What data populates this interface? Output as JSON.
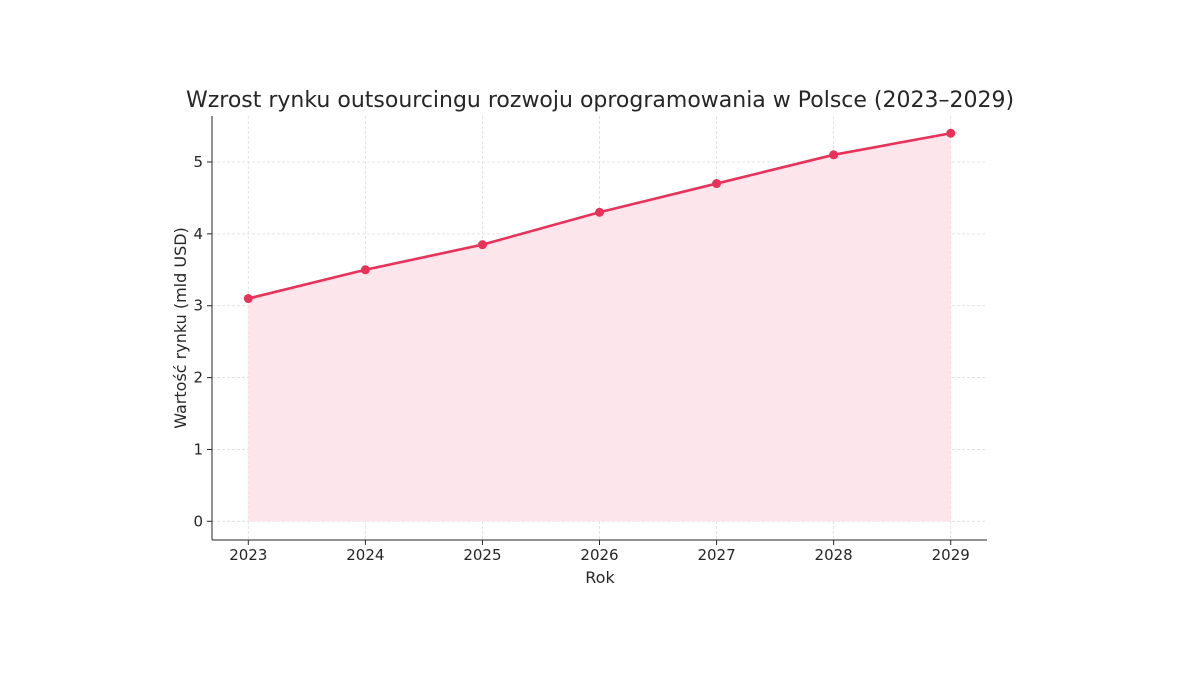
{
  "chart_data": {
    "type": "area",
    "title": "Wzrost rynku outsourcingu rozwoju oprogramowania w Polsce (2023–2029)",
    "xlabel": "Rok",
    "ylabel": "Wartość rynku (mld USD)",
    "x": [
      2023,
      2024,
      2025,
      2026,
      2027,
      2028,
      2029
    ],
    "x_tick_labels": [
      "2023",
      "2024",
      "2025",
      "2026",
      "2027",
      "2028",
      "2029"
    ],
    "values": [
      3.1,
      3.5,
      3.85,
      4.3,
      4.7,
      5.1,
      5.4
    ],
    "y_ticks": [
      0,
      1,
      2,
      3,
      4,
      5
    ],
    "y_tick_labels": [
      "0",
      "1",
      "2",
      "3",
      "4",
      "5"
    ],
    "xlim": [
      2022.69,
      2029.31
    ],
    "ylim": [
      -0.26,
      5.64
    ],
    "grid": true,
    "markers": true,
    "line_color": "#e8325a",
    "fill_color": "#fde6eb"
  }
}
